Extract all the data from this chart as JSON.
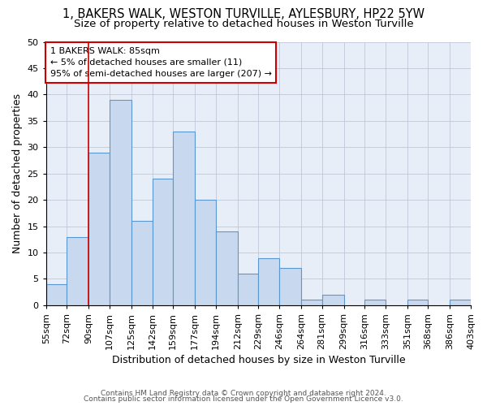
{
  "title": "1, BAKERS WALK, WESTON TURVILLE, AYLESBURY, HP22 5YW",
  "subtitle": "Size of property relative to detached houses in Weston Turville",
  "xlabel": "Distribution of detached houses by size in Weston Turville",
  "ylabel": "Number of detached properties",
  "footer_line1": "Contains HM Land Registry data © Crown copyright and database right 2024.",
  "footer_line2": "Contains public sector information licensed under the Open Government Licence v3.0.",
  "bins": [
    55,
    72,
    90,
    107,
    125,
    142,
    159,
    177,
    194,
    212,
    229,
    246,
    264,
    281,
    299,
    316,
    333,
    351,
    368,
    386,
    403
  ],
  "bin_labels": [
    "55sqm",
    "72sqm",
    "90sqm",
    "107sqm",
    "125sqm",
    "142sqm",
    "159sqm",
    "177sqm",
    "194sqm",
    "212sqm",
    "229sqm",
    "246sqm",
    "264sqm",
    "281sqm",
    "299sqm",
    "316sqm",
    "333sqm",
    "351sqm",
    "368sqm",
    "386sqm",
    "403sqm"
  ],
  "values": [
    4,
    13,
    29,
    39,
    16,
    24,
    33,
    20,
    14,
    6,
    9,
    7,
    1,
    2,
    0,
    1,
    0,
    1,
    0,
    1
  ],
  "bar_color": "#c8d9ef",
  "bar_edge_color": "#5a96d0",
  "red_line_x": 90,
  "annotation_text": "1 BAKERS WALK: 85sqm\n← 5% of detached houses are smaller (11)\n95% of semi-detached houses are larger (207) →",
  "annotation_box_color": "#ffffff",
  "annotation_box_edge": "#cc0000",
  "ylim": [
    0,
    50
  ],
  "yticks": [
    0,
    5,
    10,
    15,
    20,
    25,
    30,
    35,
    40,
    45,
    50
  ],
  "bg_color": "#e8eef8",
  "background_color": "#ffffff",
  "grid_color": "#c0c8d8",
  "title_fontsize": 10.5,
  "subtitle_fontsize": 9.5,
  "axis_label_fontsize": 9,
  "tick_fontsize": 8,
  "footer_fontsize": 6.5
}
